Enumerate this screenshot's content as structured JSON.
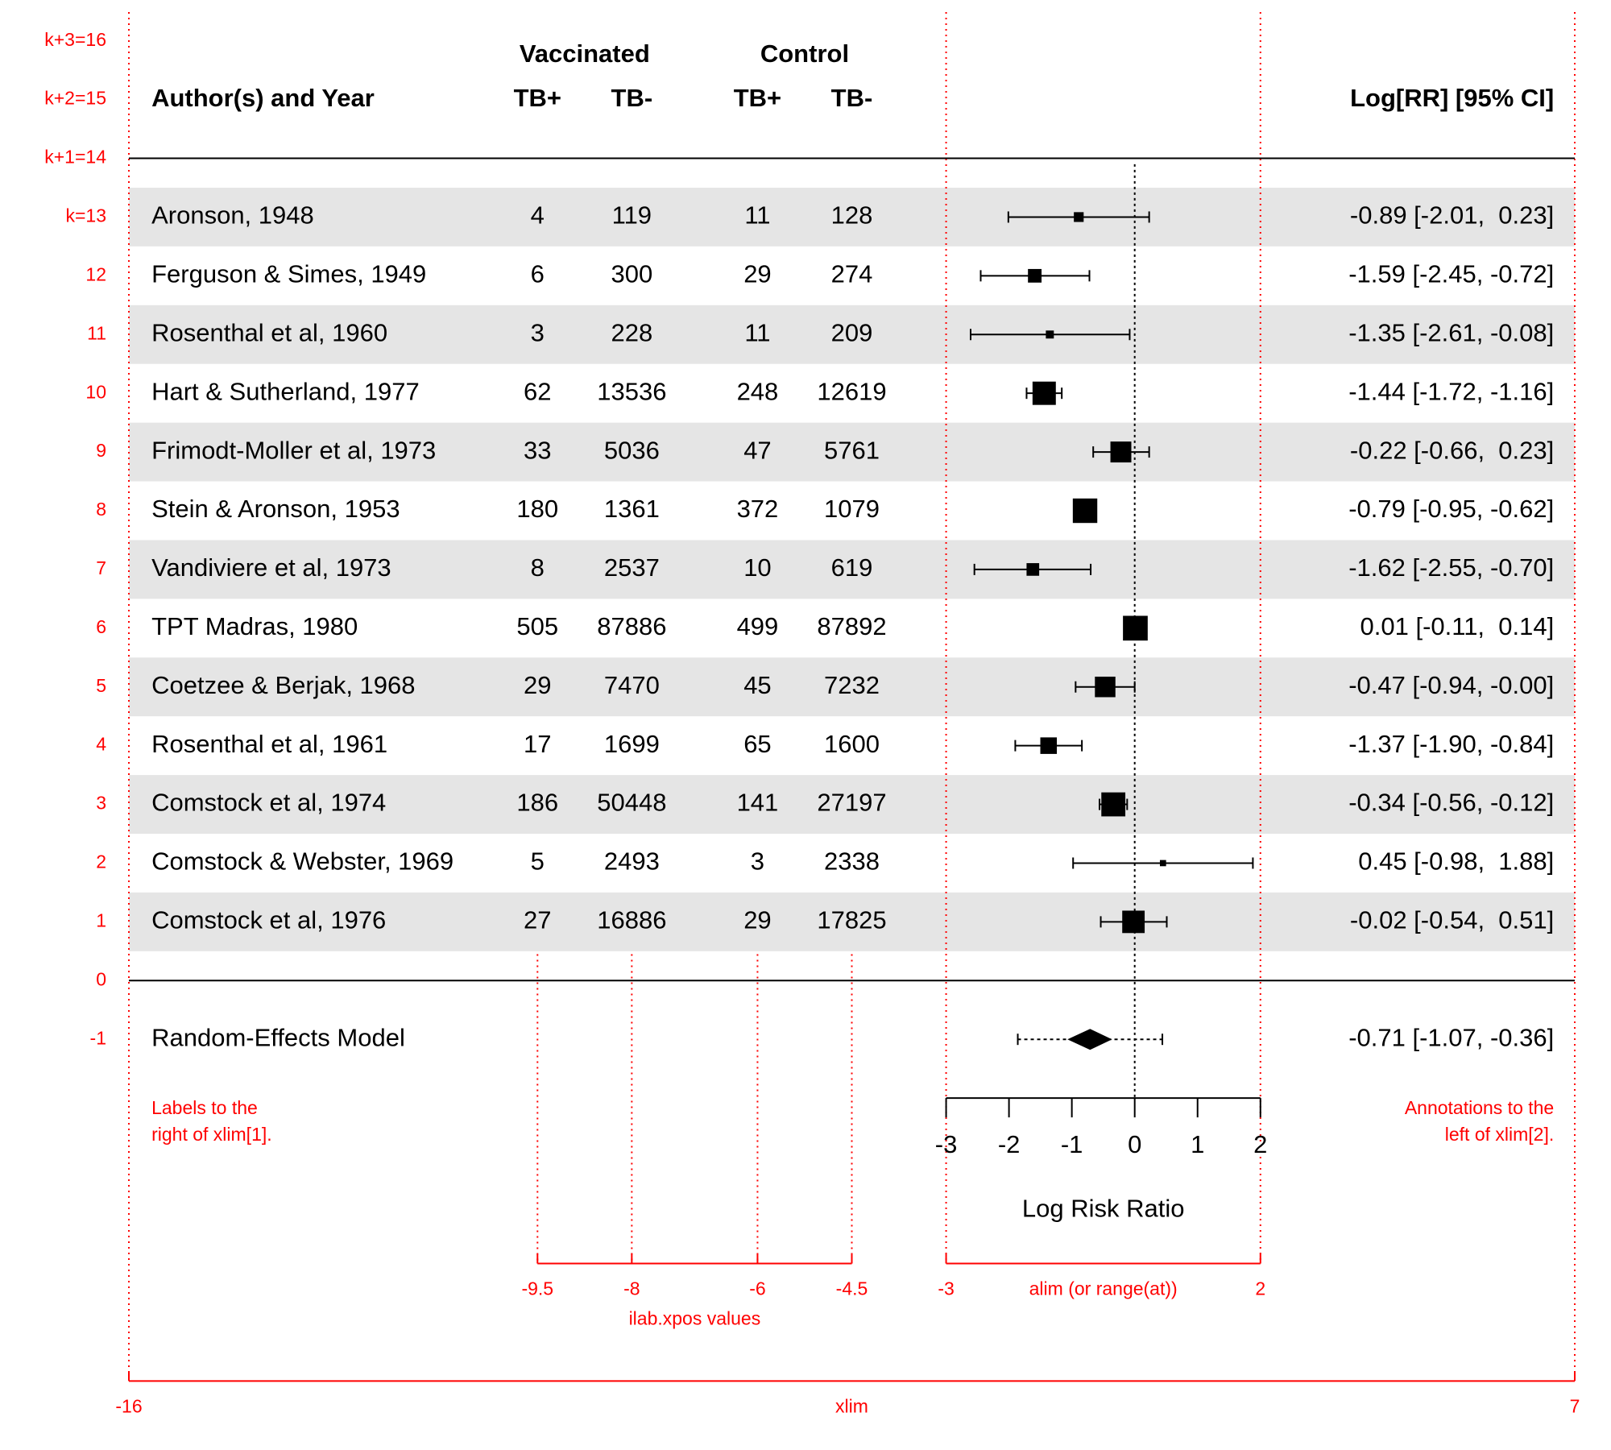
{
  "chart_data": {
    "type": "forest",
    "xlim": [
      -16,
      7
    ],
    "alim": [
      -3,
      2
    ],
    "xticks": [
      -3,
      -2,
      -1,
      0,
      1,
      2
    ],
    "xlabel": "Log Risk Ratio",
    "refline": 0,
    "color": "#000000",
    "guide_color": "#ff0000",
    "band_color": "#e5e5e5",
    "headers": {
      "group_labels": [
        "Vaccinated",
        "Control"
      ],
      "study_label": "Author(s) and Year",
      "ilab_labels": [
        "TB+",
        "TB-",
        "TB+",
        "TB-"
      ],
      "annotation_label": "Log[RR] [95% CI]"
    },
    "ilab_xpos": [
      -9.5,
      -8,
      -6,
      -4.5
    ],
    "studies": [
      {
        "label": "Aronson, 1948",
        "ilab": [
          4,
          119,
          11,
          128
        ],
        "estimate": -0.89,
        "ci_lower": -2.01,
        "ci_upper": 0.23,
        "weight": 5.06,
        "annotation": "-0.89 [-2.01,  0.23]"
      },
      {
        "label": "Ferguson & Simes, 1949",
        "ilab": [
          6,
          300,
          29,
          274
        ],
        "estimate": -1.59,
        "ci_lower": -2.45,
        "ci_upper": -0.72,
        "weight": 6.36,
        "annotation": "-1.59 [-2.45, -0.72]"
      },
      {
        "label": "Rosenthal et al, 1960",
        "ilab": [
          3,
          228,
          11,
          209
        ],
        "estimate": -1.35,
        "ci_lower": -2.61,
        "ci_upper": -0.08,
        "weight": 4.44,
        "annotation": "-1.35 [-2.61, -0.08]"
      },
      {
        "label": "Hart & Sutherland, 1977",
        "ilab": [
          62,
          13536,
          248,
          12619
        ],
        "estimate": -1.44,
        "ci_lower": -1.72,
        "ci_upper": -1.16,
        "weight": 9.7,
        "annotation": "-1.44 [-1.72, -1.16]"
      },
      {
        "label": "Frimodt-Moller et al, 1973",
        "ilab": [
          33,
          5036,
          47,
          5761
        ],
        "estimate": -0.22,
        "ci_lower": -0.66,
        "ci_upper": 0.23,
        "weight": 8.87,
        "annotation": "-0.22 [-0.66,  0.23]"
      },
      {
        "label": "Stein & Aronson, 1953",
        "ilab": [
          180,
          1361,
          372,
          1079
        ],
        "estimate": -0.79,
        "ci_lower": -0.95,
        "ci_upper": -0.62,
        "weight": 10.1,
        "annotation": "-0.79 [-0.95, -0.62]"
      },
      {
        "label": "Vandiviere et al, 1973",
        "ilab": [
          8,
          2537,
          10,
          619
        ],
        "estimate": -1.62,
        "ci_lower": -2.55,
        "ci_upper": -0.7,
        "weight": 6.03,
        "annotation": "-1.62 [-2.55, -0.70]"
      },
      {
        "label": "TPT Madras, 1980",
        "ilab": [
          505,
          87886,
          499,
          87892
        ],
        "estimate": 0.01,
        "ci_lower": -0.11,
        "ci_upper": 0.14,
        "weight": 10.19,
        "annotation": "0.01 [-0.11,  0.14]"
      },
      {
        "label": "Coetzee & Berjak, 1968",
        "ilab": [
          29,
          7470,
          45,
          7232
        ],
        "estimate": -0.47,
        "ci_lower": -0.94,
        "ci_upper": -0.0,
        "weight": 8.74,
        "annotation": "-0.47 [-0.94, -0.00]"
      },
      {
        "label": "Rosenthal et al, 1961",
        "ilab": [
          17,
          1699,
          65,
          1600
        ],
        "estimate": -1.37,
        "ci_lower": -1.9,
        "ci_upper": -0.84,
        "weight": 7.37,
        "annotation": "-1.37 [-1.90, -0.84]"
      },
      {
        "label": "Comstock et al, 1974",
        "ilab": [
          186,
          50448,
          141,
          27197
        ],
        "estimate": -0.34,
        "ci_lower": -0.56,
        "ci_upper": -0.12,
        "weight": 9.93,
        "annotation": "-0.34 [-0.56, -0.12]"
      },
      {
        "label": "Comstock & Webster, 1969",
        "ilab": [
          5,
          2493,
          3,
          2338
        ],
        "estimate": 0.45,
        "ci_lower": -0.98,
        "ci_upper": 1.88,
        "weight": 3.82,
        "annotation": "0.45 [-0.98,  1.88]"
      },
      {
        "label": "Comstock et al, 1976",
        "ilab": [
          27,
          16886,
          29,
          17825
        ],
        "estimate": -0.02,
        "ci_lower": -0.54,
        "ci_upper": 0.51,
        "weight": 9.39,
        "annotation": "-0.02 [-0.54,  0.51]"
      }
    ],
    "summary": {
      "label": "Random-Effects Model",
      "estimate": -0.71,
      "ci_lower": -1.07,
      "ci_upper": -0.36,
      "pi_lower": -1.86,
      "pi_upper": 0.44,
      "annotation": "-0.71 [-1.07, -0.36]"
    },
    "row_labels": [
      {
        "value": 16,
        "label": "k+3=16"
      },
      {
        "value": 15,
        "label": "k+2=15"
      },
      {
        "value": 14,
        "label": "k+1=14"
      },
      {
        "value": 13,
        "label": "k=13"
      },
      12,
      11,
      10,
      9,
      8,
      7,
      6,
      5,
      4,
      3,
      2,
      1,
      0,
      -1
    ],
    "guides": {
      "ilab_label": "ilab.xpos values",
      "alim_label": "alim (or range(at))",
      "xlim_label": "xlim",
      "left_note": [
        "Labels to the",
        "right of xlim[1]."
      ],
      "right_note": [
        "Annotations to the",
        "left of xlim[2]."
      ]
    }
  }
}
